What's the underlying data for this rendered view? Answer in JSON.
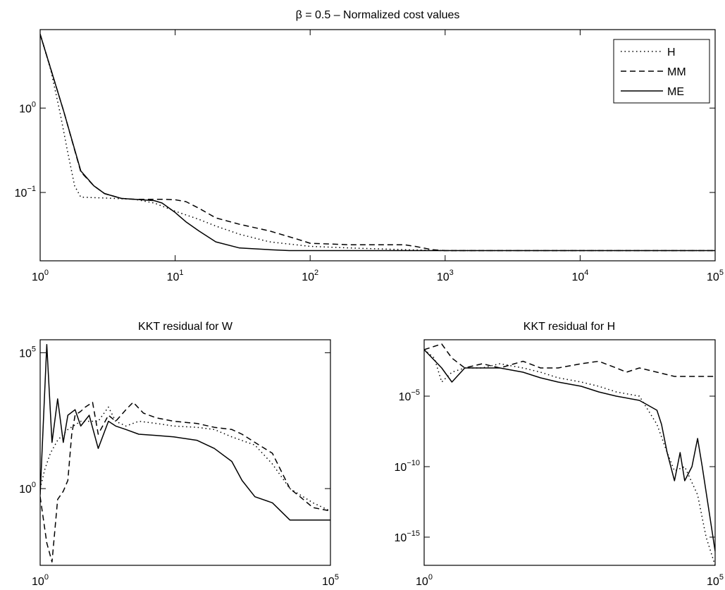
{
  "chart_data": [
    {
      "type": "line",
      "title": "β = 0.5 – Normalized cost values",
      "xlabel": "",
      "ylabel": "",
      "xscale": "log",
      "yscale": "log",
      "xlim": [
        1,
        100000
      ],
      "ylim": [
        0.0155,
        8.5
      ],
      "xticks": [
        1,
        10,
        100,
        1000,
        10000,
        100000
      ],
      "yticks": [
        0.1,
        1
      ],
      "legend": "top-right",
      "grid": false,
      "series": [
        {
          "name": "H",
          "style": "dotted",
          "x": [
            1,
            1.2,
            1.4,
            1.6,
            1.8,
            2,
            3,
            5,
            7,
            10,
            15,
            20,
            30,
            50,
            100,
            200,
            500,
            1000,
            100000
          ],
          "y": [
            7.5,
            2.8,
            0.9,
            0.3,
            0.12,
            0.088,
            0.086,
            0.083,
            0.075,
            0.06,
            0.048,
            0.04,
            0.032,
            0.026,
            0.023,
            0.022,
            0.021,
            0.0205,
            0.0205
          ]
        },
        {
          "name": "MM",
          "style": "dashed",
          "x": [
            1,
            1.5,
            2,
            2.5,
            3,
            4,
            5,
            8,
            10,
            12,
            15,
            20,
            30,
            50,
            80,
            100,
            200,
            500,
            600,
            800,
            1000,
            100000
          ],
          "y": [
            7.5,
            0.9,
            0.175,
            0.12,
            0.097,
            0.085,
            0.083,
            0.083,
            0.082,
            0.078,
            0.065,
            0.05,
            0.042,
            0.035,
            0.028,
            0.025,
            0.024,
            0.024,
            0.023,
            0.021,
            0.0205,
            0.0205
          ]
        },
        {
          "name": "ME",
          "style": "solid",
          "x": [
            1,
            1.5,
            2,
            2.5,
            3,
            4,
            5,
            7,
            8,
            10,
            12,
            15,
            20,
            30,
            50,
            70,
            100000
          ],
          "y": [
            7.5,
            0.9,
            0.18,
            0.12,
            0.097,
            0.085,
            0.083,
            0.08,
            0.075,
            0.058,
            0.045,
            0.035,
            0.026,
            0.022,
            0.021,
            0.0205,
            0.0205
          ]
        }
      ]
    },
    {
      "type": "line",
      "title": "KKT residual for W",
      "xlabel": "",
      "ylabel": "",
      "xscale": "log",
      "yscale": "log",
      "xlim": [
        1,
        100000
      ],
      "ylim": [
        0.0015,
        300000
      ],
      "xticks": [
        1,
        100000
      ],
      "yticks": [
        1,
        100000
      ],
      "grid": false,
      "series": [
        {
          "name": "H",
          "style": "dotted",
          "x": [
            1,
            1.2,
            1.5,
            2,
            3,
            5,
            10,
            15,
            20,
            30,
            50,
            100,
            200,
            500,
            1000,
            2000,
            5000,
            10000,
            20000,
            50000,
            100000
          ],
          "y": [
            1,
            5,
            20,
            60,
            150,
            300,
            300,
            1000,
            300,
            200,
            300,
            250,
            200,
            180,
            150,
            80,
            40,
            8,
            1,
            0.3,
            0.15
          ]
        },
        {
          "name": "MM",
          "style": "dashed",
          "x": [
            1,
            1.3,
            1.6,
            2,
            2.5,
            3,
            3.5,
            4,
            5,
            6,
            8,
            10,
            15,
            20,
            30,
            40,
            60,
            100,
            200,
            500,
            1000,
            2000,
            3000,
            5000,
            10000,
            20000,
            30000,
            50000,
            100000
          ],
          "y": [
            0.5,
            0.01,
            0.002,
            0.4,
            0.8,
            2,
            100,
            500,
            700,
            1000,
            1500,
            100,
            500,
            300,
            800,
            1500,
            600,
            400,
            300,
            250,
            180,
            150,
            100,
            50,
            20,
            1,
            0.5,
            0.2,
            0.15
          ]
        },
        {
          "name": "ME",
          "style": "solid",
          "x": [
            1,
            1.3,
            1.6,
            2,
            2.5,
            3,
            4,
            5,
            7,
            10,
            15,
            20,
            30,
            50,
            100,
            200,
            500,
            1000,
            2000,
            3000,
            5000,
            10000,
            20000,
            50000,
            100000
          ],
          "y": [
            0.6,
            200000,
            50,
            2000,
            50,
            500,
            800,
            200,
            500,
            30,
            300,
            200,
            150,
            100,
            90,
            80,
            60,
            30,
            10,
            2,
            0.5,
            0.3,
            0.07,
            0.07,
            0.07
          ]
        }
      ]
    },
    {
      "type": "line",
      "title": "KKT residual for H",
      "xlabel": "",
      "ylabel": "",
      "xscale": "log",
      "yscale": "log",
      "xlim": [
        1,
        100000
      ],
      "ylim": [
        1e-17,
        0.1
      ],
      "xticks": [
        1,
        100000
      ],
      "yticks": [
        1e-15,
        1e-10,
        1e-05
      ],
      "grid": false,
      "series": [
        {
          "name": "H",
          "style": "dotted",
          "x": [
            1,
            1.5,
            2,
            3,
            5,
            10,
            20,
            50,
            100,
            200,
            500,
            1000,
            2000,
            5000,
            10000,
            15000,
            20000,
            30000,
            50000,
            70000,
            100000
          ],
          "y": [
            0.02,
            0.005,
            0.0001,
            0.0005,
            0.001,
            0.001,
            0.002,
            0.001,
            0.0005,
            0.0002,
            0.0001,
            5e-05,
            2e-05,
            1e-05,
            1e-07,
            1e-09,
            5e-11,
            1e-10,
            1e-12,
            1e-15,
            1e-17
          ]
        },
        {
          "name": "MM",
          "style": "dashed",
          "x": [
            1,
            2,
            3,
            5,
            10,
            20,
            50,
            100,
            200,
            500,
            1000,
            2000,
            3000,
            5000,
            10000,
            20000,
            100000
          ],
          "y": [
            0.02,
            0.05,
            0.005,
            0.001,
            0.002,
            0.001,
            0.003,
            0.001,
            0.001,
            0.002,
            0.003,
            0.001,
            0.0005,
            0.001,
            0.0005,
            0.00025,
            0.00025
          ]
        },
        {
          "name": "ME",
          "style": "solid",
          "x": [
            1,
            2,
            3,
            5,
            10,
            20,
            50,
            100,
            200,
            500,
            1000,
            2000,
            5000,
            10000,
            12000,
            15000,
            20000,
            25000,
            30000,
            40000,
            50000,
            60000,
            100000
          ],
          "y": [
            0.02,
            0.001,
            0.0001,
            0.001,
            0.001,
            0.001,
            0.0005,
            0.0002,
            0.0001,
            5e-05,
            2e-05,
            1e-05,
            5e-06,
            1e-06,
            1e-07,
            1e-09,
            1e-11,
            1e-09,
            1e-11,
            1e-10,
            1e-08,
            1e-10,
            1e-16
          ]
        }
      ]
    }
  ]
}
